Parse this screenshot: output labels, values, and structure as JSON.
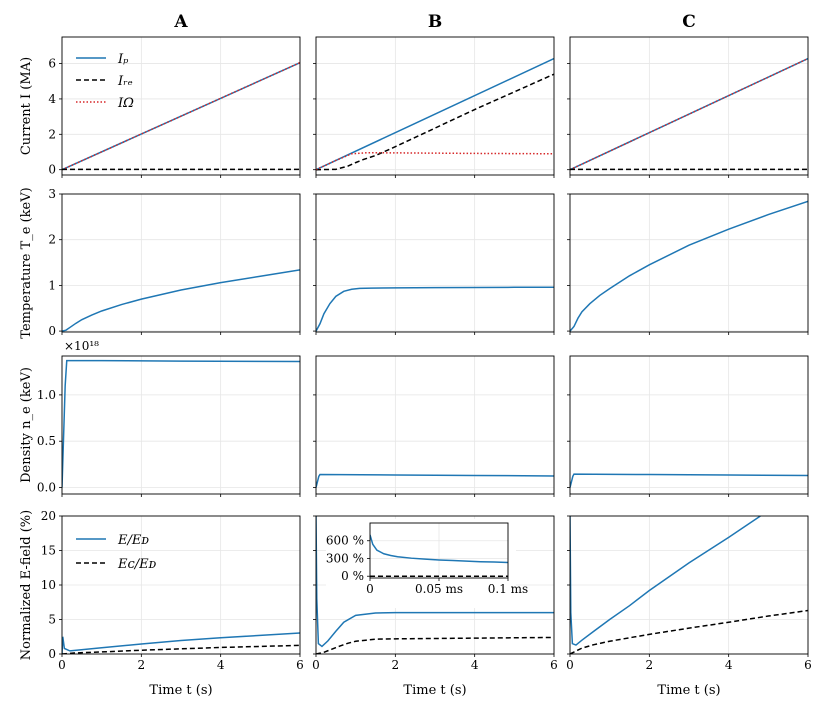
{
  "figure": {
    "column_titles": [
      "A",
      "B",
      "C"
    ],
    "row_ylabels": [
      "Current I (MA)",
      "Temperature T_e (keV)",
      "Density n_e (keV)",
      "Normalized E-field (%)"
    ],
    "xlabel": "Time t (s)",
    "density_multiplier": "×10¹⁸"
  },
  "chart_data": [
    {
      "type": "line",
      "panel": "A-current",
      "xlim": [
        0,
        6
      ],
      "ylim": [
        -0.3,
        7.5
      ],
      "yticks": [
        0,
        2,
        4,
        6
      ],
      "legend": {
        "placement": "top-left",
        "labels": [
          "Iₚ",
          "Iᵣₑ",
          "IΩ"
        ]
      },
      "series": [
        {
          "name": "Ip",
          "color": "#1f77b4",
          "dash": "",
          "x": [
            0,
            6
          ],
          "y": [
            0,
            6.05
          ]
        },
        {
          "name": "Iohm",
          "color": "#d62728",
          "dash": "dot",
          "x": [
            0,
            6
          ],
          "y": [
            0,
            6.05
          ]
        },
        {
          "name": "Ire",
          "color": "#000000",
          "dash": "dash",
          "x": [
            0,
            6
          ],
          "y": [
            0.02,
            0.02
          ]
        }
      ]
    },
    {
      "type": "line",
      "panel": "B-current",
      "xlim": [
        0,
        6
      ],
      "ylim": [
        -0.3,
        7.5
      ],
      "yticks": [
        0,
        2,
        4,
        6
      ],
      "series": [
        {
          "name": "Ip",
          "color": "#1f77b4",
          "dash": "",
          "x": [
            0,
            6
          ],
          "y": [
            0,
            6.28
          ]
        },
        {
          "name": "Ire",
          "color": "#000000",
          "dash": "dash",
          "x": [
            0,
            0.5,
            0.8,
            1.0,
            1.2,
            1.5,
            2,
            3,
            4,
            5,
            6
          ],
          "y": [
            0,
            0.02,
            0.2,
            0.4,
            0.58,
            0.8,
            1.3,
            2.35,
            3.4,
            4.4,
            5.4
          ]
        },
        {
          "name": "Iohm",
          "color": "#d62728",
          "dash": "dot",
          "x": [
            0,
            0.5,
            0.9,
            1.3,
            2,
            4,
            6
          ],
          "y": [
            0,
            0.52,
            0.9,
            0.96,
            0.95,
            0.92,
            0.9
          ]
        }
      ]
    },
    {
      "type": "line",
      "panel": "C-current",
      "xlim": [
        0,
        6
      ],
      "ylim": [
        -0.3,
        7.5
      ],
      "yticks": [
        0,
        2,
        4,
        6
      ],
      "series": [
        {
          "name": "Ip",
          "color": "#1f77b4",
          "dash": "",
          "x": [
            0,
            6
          ],
          "y": [
            0,
            6.28
          ]
        },
        {
          "name": "Iohm",
          "color": "#d62728",
          "dash": "dot",
          "x": [
            0,
            6
          ],
          "y": [
            0,
            6.28
          ]
        },
        {
          "name": "Ire",
          "color": "#000000",
          "dash": "dash",
          "x": [
            0,
            6
          ],
          "y": [
            0.02,
            0.02
          ]
        }
      ]
    },
    {
      "type": "line",
      "panel": "A-temperature",
      "xlim": [
        0,
        6
      ],
      "ylim": [
        -0.02,
        3.0
      ],
      "yticks": [
        0,
        1,
        2,
        3
      ],
      "series": [
        {
          "name": "Te",
          "color": "#1f77b4",
          "dash": "",
          "x": [
            0,
            0.1,
            0.2,
            0.35,
            0.5,
            0.75,
            1,
            1.5,
            2,
            3,
            4,
            5,
            6
          ],
          "y": [
            0,
            0.02,
            0.08,
            0.17,
            0.25,
            0.35,
            0.44,
            0.58,
            0.7,
            0.9,
            1.06,
            1.2,
            1.34
          ]
        }
      ]
    },
    {
      "type": "line",
      "panel": "B-temperature",
      "xlim": [
        0,
        6
      ],
      "ylim": [
        -0.02,
        3.0
      ],
      "yticks": [
        0,
        1,
        2,
        3
      ],
      "series": [
        {
          "name": "Te",
          "color": "#1f77b4",
          "dash": "",
          "x": [
            0,
            0.1,
            0.2,
            0.35,
            0.5,
            0.7,
            0.9,
            1.1,
            1.4,
            2,
            3,
            4,
            5,
            6
          ],
          "y": [
            0,
            0.16,
            0.38,
            0.6,
            0.76,
            0.87,
            0.915,
            0.935,
            0.94,
            0.945,
            0.95,
            0.955,
            0.958,
            0.96
          ]
        }
      ]
    },
    {
      "type": "line",
      "panel": "C-temperature",
      "xlim": [
        0,
        6
      ],
      "ylim": [
        -0.02,
        3.0
      ],
      "yticks": [
        0,
        1,
        2,
        3
      ],
      "series": [
        {
          "name": "Te",
          "color": "#1f77b4",
          "dash": "",
          "x": [
            0,
            0.1,
            0.2,
            0.3,
            0.5,
            0.75,
            1,
            1.5,
            2,
            3,
            4,
            5,
            6
          ],
          "y": [
            0,
            0.1,
            0.28,
            0.42,
            0.6,
            0.78,
            0.93,
            1.21,
            1.45,
            1.88,
            2.23,
            2.55,
            2.84
          ]
        }
      ]
    },
    {
      "type": "line",
      "panel": "A-density",
      "xlim": [
        0,
        6
      ],
      "ylim": [
        -0.07,
        1.42
      ],
      "yticks": [
        0,
        0.5,
        1
      ],
      "ytick_labels": [
        "0.0",
        "0.5",
        "1.0"
      ],
      "series": [
        {
          "name": "ne",
          "color": "#1f77b4",
          "dash": "",
          "x": [
            0,
            0.08,
            0.12,
            1,
            3,
            6
          ],
          "y": [
            0,
            1.1,
            1.37,
            1.37,
            1.365,
            1.36
          ]
        }
      ]
    },
    {
      "type": "line",
      "panel": "B-density",
      "xlim": [
        0,
        6
      ],
      "ylim": [
        -0.07,
        1.42
      ],
      "yticks": [
        0,
        0.5,
        1
      ],
      "series": [
        {
          "name": "ne",
          "color": "#1f77b4",
          "dash": "",
          "x": [
            0,
            0.07,
            0.1,
            2,
            4,
            6
          ],
          "y": [
            0,
            0.12,
            0.14,
            0.135,
            0.13,
            0.125
          ]
        }
      ]
    },
    {
      "type": "line",
      "panel": "C-density",
      "xlim": [
        0,
        6
      ],
      "ylim": [
        -0.07,
        1.42
      ],
      "yticks": [
        0,
        0.5,
        1
      ],
      "series": [
        {
          "name": "ne",
          "color": "#1f77b4",
          "dash": "",
          "x": [
            0,
            0.07,
            0.1,
            2,
            4,
            6
          ],
          "y": [
            0,
            0.12,
            0.145,
            0.14,
            0.135,
            0.13
          ]
        }
      ]
    },
    {
      "type": "line",
      "panel": "A-efield",
      "xlim": [
        0,
        6
      ],
      "ylim": [
        0,
        20
      ],
      "yticks": [
        0,
        5,
        10,
        15,
        20
      ],
      "legend": {
        "placement": "top-left",
        "labels": [
          "E/Eᴅ",
          "Eᴄ/Eᴅ"
        ]
      },
      "series": [
        {
          "name": "E",
          "color": "#1f77b4",
          "dash": "",
          "x": [
            0,
            0.02,
            0.06,
            0.2,
            1,
            2,
            3,
            4,
            5,
            6
          ],
          "y": [
            0,
            2.5,
            0.8,
            0.45,
            0.9,
            1.45,
            1.95,
            2.35,
            2.7,
            3.05
          ]
        },
        {
          "name": "Ec",
          "color": "#000000",
          "dash": "dash",
          "x": [
            0,
            0.3,
            1,
            2,
            3,
            4,
            5,
            6
          ],
          "y": [
            0,
            0.15,
            0.3,
            0.55,
            0.75,
            0.95,
            1.1,
            1.25
          ]
        }
      ]
    },
    {
      "type": "line",
      "panel": "B-efield",
      "xlim": [
        0,
        6
      ],
      "ylim": [
        0,
        20
      ],
      "yticks": [
        0,
        5,
        10,
        15,
        20
      ],
      "series": [
        {
          "name": "E",
          "color": "#1f77b4",
          "dash": "",
          "x": [
            0,
            0.02,
            0.06,
            0.15,
            0.3,
            0.5,
            0.7,
            1,
            1.5,
            2,
            3,
            4,
            5,
            6
          ],
          "y": [
            20,
            8,
            1.5,
            1.1,
            1.9,
            3.3,
            4.6,
            5.6,
            5.95,
            6.0,
            6.0,
            6.0,
            6.0,
            6.0
          ]
        },
        {
          "name": "Ec",
          "color": "#000000",
          "dash": "dash",
          "x": [
            0,
            0.2,
            0.4,
            0.6,
            0.8,
            1,
            1.5,
            2,
            3,
            4,
            5,
            6
          ],
          "y": [
            0,
            0.25,
            0.7,
            1.15,
            1.55,
            1.85,
            2.15,
            2.2,
            2.25,
            2.3,
            2.35,
            2.4
          ]
        }
      ]
    },
    {
      "type": "line",
      "panel": "B-efield-inset",
      "xlim": [
        0,
        0.1
      ],
      "ylim": [
        -30,
        900
      ],
      "xunit": "ms",
      "yunit": "%",
      "xticks": [
        0,
        0.05,
        0.1
      ],
      "xtick_labels": [
        "0",
        "0.05 ms",
        "0.1 ms"
      ],
      "yticks": [
        0,
        300,
        600
      ],
      "ytick_labels": [
        "0 %",
        "300 %",
        "600 %"
      ],
      "series": [
        {
          "name": "E",
          "color": "#1f77b4",
          "dash": "",
          "x": [
            0,
            0.002,
            0.005,
            0.01,
            0.015,
            0.02,
            0.03,
            0.04,
            0.05,
            0.06,
            0.07,
            0.08,
            0.09,
            0.1
          ],
          "y": [
            700,
            540,
            440,
            380,
            350,
            330,
            305,
            290,
            275,
            265,
            255,
            245,
            240,
            232
          ]
        },
        {
          "name": "Ec",
          "color": "#000000",
          "dash": "dash",
          "x": [
            0,
            0.1
          ],
          "y": [
            0,
            0
          ]
        }
      ]
    },
    {
      "type": "line",
      "panel": "C-efield",
      "xlim": [
        0,
        6
      ],
      "ylim": [
        0,
        20
      ],
      "yticks": [
        0,
        5,
        10,
        15,
        20
      ],
      "series": [
        {
          "name": "E",
          "color": "#1f77b4",
          "dash": "",
          "x": [
            0,
            0.02,
            0.06,
            0.15,
            0.3,
            0.6,
            1,
            1.5,
            2,
            3,
            4,
            4.8
          ],
          "y": [
            20,
            6,
            1.5,
            1.3,
            2.0,
            3.3,
            5.0,
            7.0,
            9.2,
            13.2,
            16.9,
            20
          ]
        },
        {
          "name": "Ec",
          "color": "#000000",
          "dash": "dash",
          "x": [
            0,
            0.3,
            0.6,
            1,
            1.5,
            2,
            3,
            4,
            5,
            6
          ],
          "y": [
            0,
            0.85,
            1.35,
            1.85,
            2.35,
            2.85,
            3.75,
            4.6,
            5.5,
            6.3
          ]
        }
      ]
    }
  ]
}
